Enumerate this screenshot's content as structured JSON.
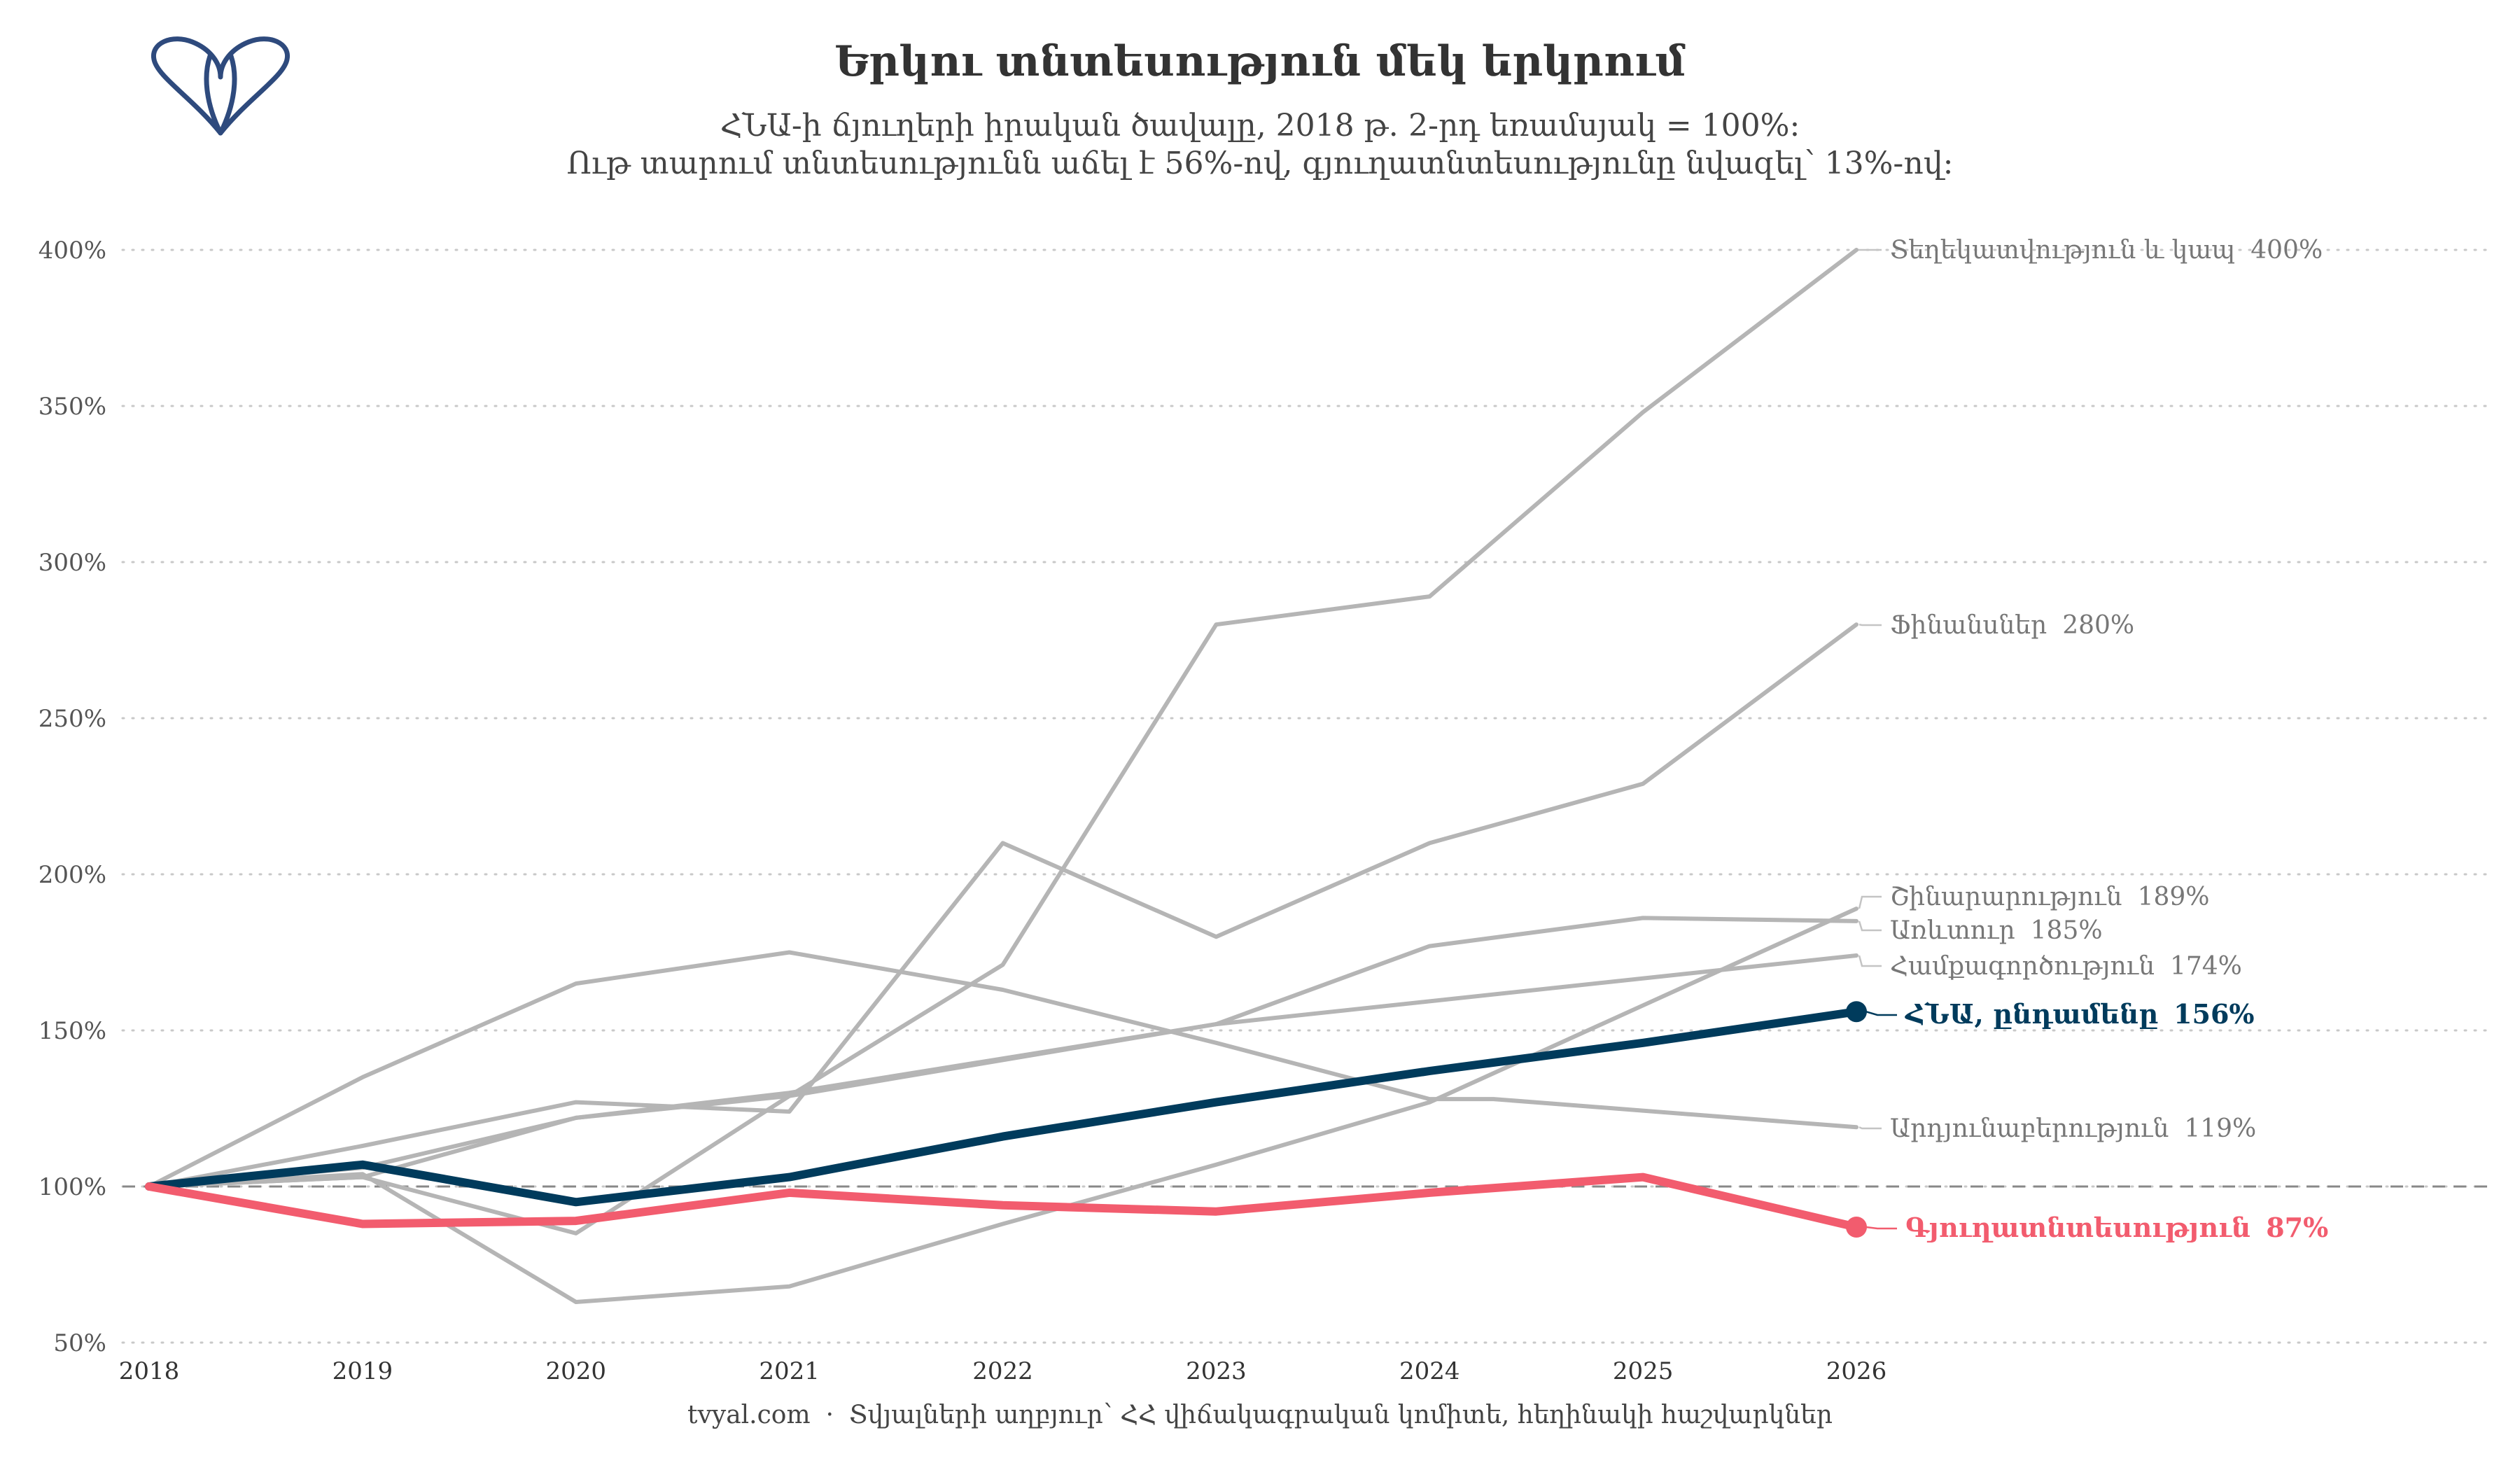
{
  "header": {
    "title": "Երկու տնտեսություն մեկ երկրում",
    "subtitle_line1": "ՀՆԱ-ի ճյուղերի իրական ծավալը, 2018 թ․ 2-րդ եռամսյակ = 100%:",
    "subtitle_line2": "Ութ տարում տնտեսությունն աճել է 56%-ով, գյուղատնտեսությունը նվազել՝ 13%-ով:"
  },
  "footer": {
    "site": "tvyal.com",
    "separator": "·",
    "source": "Տվյալների աղբյուր՝ ՀՀ վիճակագրական կոմիտե, հեղինակի հաշվարկներ"
  },
  "logo": {
    "icon": "tvyal-logo-icon",
    "color": "#2e4a7d"
  },
  "colors": {
    "background": "#ffffff",
    "muted": "#b5b5b5",
    "gdp": "#003b5c",
    "agriculture": "#f25c6e",
    "grid": "#c8c8c8",
    "reference": "#888888"
  },
  "chart_data": {
    "type": "line",
    "x": [
      2018,
      2019,
      2020,
      2021,
      2022,
      2023,
      2024,
      2025,
      2026
    ],
    "x_tick_labels": [
      "2018",
      "2019",
      "2020",
      "2021",
      "2022",
      "2023",
      "2024",
      "2025",
      "2026"
    ],
    "ylim": [
      50,
      400
    ],
    "y_ticks": [
      50,
      100,
      150,
      200,
      250,
      300,
      350,
      400
    ],
    "y_tick_labels": [
      "50%",
      "100%",
      "150%",
      "200%",
      "250%",
      "300%",
      "350%",
      "400%"
    ],
    "grid": "horizontal dotted",
    "reference_line": 100,
    "series": [
      {
        "name": "Տեղեկատվություն և կապ",
        "end_label": "400%",
        "style": "muted",
        "values": [
          100,
          103,
          85,
          129,
          171,
          280,
          289,
          348,
          400
        ]
      },
      {
        "name": "Ֆինանսներ",
        "end_label": "280%",
        "style": "muted",
        "values": [
          100,
          113,
          127,
          124,
          210,
          180,
          210,
          229,
          280
        ]
      },
      {
        "name": "Շինարարություն",
        "end_label": "189%",
        "style": "muted",
        "values": [
          100,
          104,
          63,
          68,
          88,
          107,
          127,
          158,
          189
        ]
      },
      {
        "name": "Առևտուր",
        "end_label": "185%",
        "style": "muted",
        "values": [
          100,
          106,
          122,
          129,
          152,
          177,
          186,
          185
        ],
        "x": [
          2018,
          2019,
          2020,
          2021,
          2023,
          2024,
          2025,
          2026
        ]
      },
      {
        "name": "Համքագործություն",
        "end_label": "174%",
        "style": "muted",
        "values": [
          100,
          103,
          122,
          130,
          152,
          174
        ],
        "x": [
          2018,
          2019,
          2020,
          2021,
          2023,
          2026
        ]
      },
      {
        "name": "Արդյունաբերություն",
        "end_label": "119%",
        "style": "muted",
        "values": [
          100,
          135,
          165,
          175,
          163,
          146,
          128,
          128,
          119
        ],
        "x": [
          2018,
          2019,
          2020,
          2021,
          2022,
          2023,
          2024,
          2024.3,
          2026
        ]
      },
      {
        "name": "ՀՆԱ, ընդամենը",
        "end_label": "156%",
        "style": "gdp",
        "values": [
          100,
          107,
          95,
          103,
          116,
          127,
          137,
          146,
          156
        ]
      },
      {
        "name": "Գյուղատնտեսություն",
        "end_label": "87%",
        "style": "agriculture",
        "values": [
          100,
          88,
          89,
          98,
          94,
          92,
          98,
          103,
          87
        ]
      }
    ]
  }
}
